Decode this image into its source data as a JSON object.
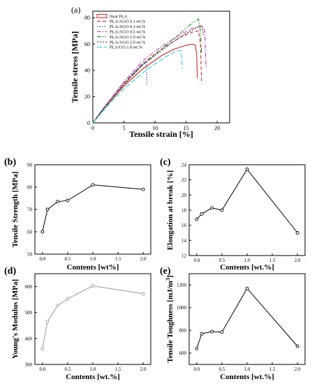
{
  "figure": {
    "panel_labels": [
      "(a)",
      "(b)",
      "(c)",
      "(d)",
      "(e)"
    ]
  },
  "chart_data": [
    {
      "id": "a",
      "type": "line",
      "xlabel": "Tensile strain [%]",
      "ylabel": "Tensile stress [MPa]",
      "xlim": [
        0,
        22
      ],
      "ylim": [
        0,
        85
      ],
      "xticks": [
        0,
        5,
        10,
        15,
        20
      ],
      "yticks": [
        0,
        20,
        40,
        60,
        80
      ],
      "legend_position": "top-left",
      "series": [
        {
          "name": "Neat PLA",
          "color": "#d62728",
          "dash": "",
          "x": [
            0,
            2,
            5,
            8,
            11,
            13,
            15,
            16,
            16.5,
            16.7,
            16.8
          ],
          "y": [
            0,
            12,
            28,
            41,
            51,
            56,
            59,
            60,
            59,
            52,
            34
          ]
        },
        {
          "name": "PLA/AGO 0.1 wt.%",
          "color": "#d62728",
          "dash": "5,3",
          "x": [
            0,
            2,
            5,
            8,
            11,
            14,
            16,
            17,
            17.3,
            17.5
          ],
          "y": [
            0,
            13,
            30,
            45,
            56,
            65,
            69,
            70,
            60,
            30
          ]
        },
        {
          "name": "PLA/AGO 0.3 wt.%",
          "color": "#1f3fbf",
          "dash": "1.5,2",
          "x": [
            0,
            2,
            5,
            8,
            8.6,
            8.7
          ],
          "y": [
            0,
            13,
            31,
            45,
            47,
            29
          ]
        },
        {
          "name": "PLA/AGO 0.5 wt.%",
          "color": "#c03cc0",
          "dash": "6,2,1.5,2",
          "x": [
            0,
            2,
            5,
            8,
            11,
            14,
            16,
            17.5,
            18,
            18.2
          ],
          "y": [
            0,
            13,
            31,
            47,
            58,
            67,
            72,
            74,
            70,
            42
          ]
        },
        {
          "name": "PLA/AGO 1.0 wt.%",
          "color": "#1f8f1f",
          "dash": "6,2,1.5,2,1.5,2",
          "x": [
            0,
            2,
            5,
            8,
            11,
            14,
            16,
            17,
            17.3,
            17.5
          ],
          "y": [
            0,
            12,
            29,
            44,
            56,
            68,
            76,
            79,
            70,
            53
          ]
        },
        {
          "name": "PLA/AGO 2.0 wt.%",
          "color": "#222222",
          "dash": "2,2",
          "x": [
            0,
            2,
            5,
            8,
            11,
            13,
            15,
            16.5,
            17.5,
            17.8
          ],
          "y": [
            0,
            12,
            29,
            44,
            55,
            62,
            68,
            72,
            74,
            67
          ]
        },
        {
          "name": "PLA/GO 1.0 wt.%",
          "color": "#1fd3e0",
          "dash": "7,3",
          "x": [
            0,
            2,
            5,
            8,
            10,
            12,
            13.5,
            14.2,
            14.4
          ],
          "y": [
            0,
            11,
            26,
            38,
            45,
            51,
            55,
            55,
            41
          ]
        }
      ]
    },
    {
      "id": "b",
      "type": "line",
      "xlabel": "Contents [wt%]",
      "ylabel": "Tensile Strength [MPa]",
      "xlim": [
        -0.15,
        2.15
      ],
      "ylim": [
        50,
        90
      ],
      "xticks": [
        0.0,
        0.5,
        1.0,
        1.5,
        2.0
      ],
      "xtick_labels": [
        "0.0",
        "0.5",
        "1.0",
        "1.5",
        "2.0"
      ],
      "yticks": [
        50,
        60,
        70,
        80,
        90
      ],
      "color": "#000000",
      "x": [
        0.0,
        0.1,
        0.3,
        0.5,
        1.0,
        2.0
      ],
      "y": [
        60,
        70,
        73.5,
        74,
        81,
        79
      ]
    },
    {
      "id": "c",
      "type": "line",
      "xlabel": "Contents [wt.%]",
      "ylabel": "Elongation at break [%]",
      "xlim": [
        -0.15,
        2.15
      ],
      "ylim": [
        12,
        24
      ],
      "xticks": [
        0.0,
        0.5,
        1.0,
        1.5,
        2.0
      ],
      "xtick_labels": [
        "0.0",
        "0.5",
        "1.0",
        "1.5",
        "2.0"
      ],
      "yticks": [
        12,
        14,
        16,
        18,
        20,
        22,
        24
      ],
      "color": "#000000",
      "x": [
        0.0,
        0.1,
        0.3,
        0.5,
        1.0,
        2.0
      ],
      "y": [
        16.8,
        17.5,
        18.3,
        18.0,
        23.4,
        15.0
      ]
    },
    {
      "id": "d",
      "type": "line",
      "xlabel": "Contents [wt.%]",
      "ylabel": "Young's Modulus [MPa]",
      "xlim": [
        -0.15,
        2.15
      ],
      "ylim": [
        300,
        650
      ],
      "xticks": [
        0.0,
        0.5,
        1.0,
        1.5,
        2.0
      ],
      "xtick_labels": [
        "0.0",
        "0.5",
        "1.0",
        "1.5",
        "2.0"
      ],
      "yticks": [
        300,
        400,
        500,
        600
      ],
      "color": "#999999",
      "x": [
        0.0,
        0.1,
        0.3,
        0.5,
        1.0,
        2.0
      ],
      "y": [
        360,
        465,
        527,
        553,
        603,
        573
      ]
    },
    {
      "id": "e",
      "type": "line",
      "xlabel": "Contents [wt.%]",
      "ylabel": "Tensile Toughness [mJ/m",
      "ylabel_superscript": "3",
      "ylabel_close": "]",
      "xlim": [
        -0.15,
        2.15
      ],
      "ylim": [
        500,
        1300
      ],
      "xticks": [
        0.0,
        0.5,
        1.0,
        1.5,
        2.0
      ],
      "xtick_labels": [
        "0.0",
        "0.5",
        "1.0",
        "1.5",
        "2.0"
      ],
      "yticks": [
        600,
        800,
        1000,
        1200
      ],
      "color": "#000000",
      "x": [
        0.0,
        0.1,
        0.3,
        0.5,
        1.0,
        2.0
      ],
      "y": [
        640,
        770,
        790,
        785,
        1170,
        660
      ]
    }
  ]
}
